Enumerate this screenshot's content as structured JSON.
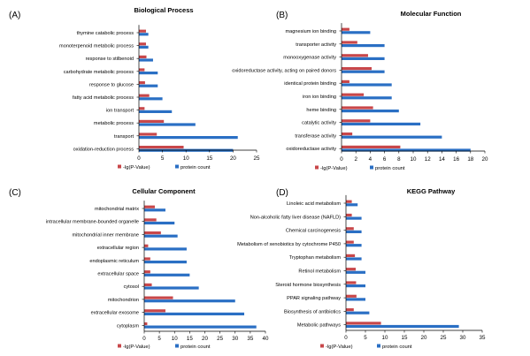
{
  "figure": {
    "colors": {
      "pvalue": "#c8474a",
      "count": "#2a6fc4",
      "axis": "#000000"
    }
  },
  "chart_data": [
    {
      "panel": "(A)",
      "type": "bar",
      "title": "Biological Process",
      "categories": [
        "thymine catabolic process",
        "monoterpenoid metabolic process",
        "response to stilbenoid",
        "carbohydrate metabolic process",
        "response to glucose",
        "fatty acid metabolic process",
        "ion transport",
        "metabolic process",
        "transport",
        "oxidation-reduction process"
      ],
      "series": [
        {
          "name": "-lg(P-Value)",
          "values": [
            1.5,
            1.5,
            1.6,
            1.2,
            1.3,
            2.2,
            1.2,
            5.3,
            3.8,
            9.5
          ]
        },
        {
          "name": "protein count",
          "values": [
            2,
            2,
            3,
            4,
            4,
            5,
            7,
            12,
            21,
            20
          ]
        }
      ],
      "xticks": [
        0,
        5,
        10,
        15,
        20,
        25
      ],
      "xlim": [
        0,
        25
      ]
    },
    {
      "panel": "(B)",
      "type": "bar",
      "title": "Molecular Function",
      "categories": [
        "magnesium ion binding",
        "transporter activity",
        "monooxygenase activity",
        "oxidoreductase activity, acting on paired donors",
        "identical protein binding",
        "iron ion binding",
        "heme binding",
        "catalytic activity",
        "transferase activity",
        "oxidoreductase activity"
      ],
      "series": [
        {
          "name": "-lg(P-Value)",
          "values": [
            1.1,
            2.2,
            3.7,
            4.2,
            1.1,
            3.1,
            4.4,
            4.0,
            1.5,
            8.2
          ]
        },
        {
          "name": "protein count",
          "values": [
            4,
            6,
            6,
            6,
            7,
            7,
            8,
            11,
            14,
            18
          ]
        }
      ],
      "xticks": [
        0,
        2,
        4,
        6,
        8,
        10,
        12,
        14,
        16,
        18,
        20
      ],
      "xlim": [
        0,
        20
      ]
    },
    {
      "panel": "(C)",
      "type": "bar",
      "title": "Cellular Component",
      "categories": [
        "mitochondrial matrix",
        "intracellular membrane-bounded organelle",
        "mitochondrial inner membrane",
        "extracellular region",
        "endoplasmic reticulum",
        "extracellular space",
        "cytosol",
        "mitochondrion",
        "extracellular exosome",
        "cytoplasm"
      ],
      "series": [
        {
          "name": "-lg(P-Value)",
          "values": [
            3.5,
            4.0,
            5.5,
            1.3,
            2.0,
            2.0,
            2.5,
            9.5,
            7.0,
            1.0
          ]
        },
        {
          "name": "protein count",
          "values": [
            7,
            10,
            11,
            14,
            14,
            15,
            18,
            30,
            33,
            37
          ]
        }
      ],
      "xticks": [
        0,
        5,
        10,
        15,
        20,
        25,
        30,
        35,
        40
      ],
      "xlim": [
        0,
        40
      ]
    },
    {
      "panel": "(D)",
      "type": "bar",
      "title": "KEGG Pathway",
      "categories": [
        "Linoleic acid metabolism",
        "Non-alcoholic fatty liver disease (NAFLD)",
        "Chemical carcinogenesis",
        "Metabolism of xenobiotics by cytochrome P450",
        "Tryptophan metabolism",
        "Retinol metabolism",
        "Steroid hormone biosynthesis",
        "PPAR signaling pathway",
        "Biosynthesis of antibiotics",
        "Metabolic pathways"
      ],
      "series": [
        {
          "name": "-lg(P-Value)",
          "values": [
            1.5,
            1.5,
            2.0,
            2.0,
            2.3,
            2.5,
            2.6,
            2.7,
            2.0,
            9.0
          ]
        },
        {
          "name": "protein count",
          "values": [
            3,
            4,
            4,
            4,
            4,
            5,
            5,
            5,
            6,
            29
          ]
        }
      ],
      "xticks": [
        0,
        5,
        10,
        15,
        20,
        25,
        30,
        35
      ],
      "xlim": [
        0,
        35
      ]
    }
  ]
}
